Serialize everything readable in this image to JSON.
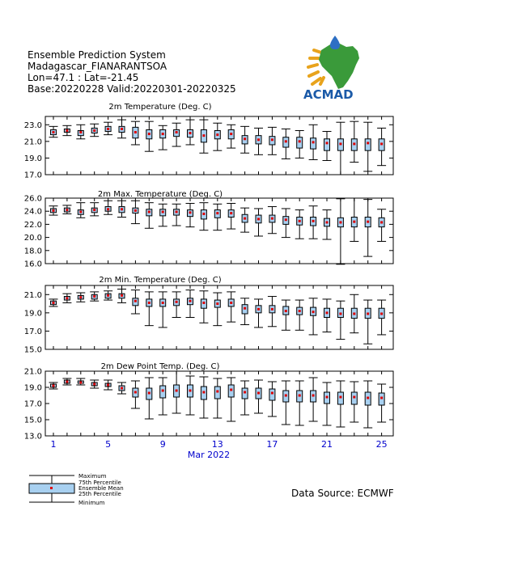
{
  "header": {
    "lines": [
      "Ensemble Prediction System",
      "Madagascar_FIANARANTSOA",
      "Lon=47.1 : Lat=-21.45",
      "Base:20220228 Valid:20220301-20220325"
    ],
    "logo_text": "ACMAD"
  },
  "x_axis": {
    "tick_labels": [
      "1",
      "5",
      "9",
      "13",
      "17",
      "21",
      "25"
    ],
    "month_label": "Mar 2022"
  },
  "legend": {
    "maximum": "Maximum",
    "p75": "75th Percentile",
    "mean": "Ensemble Mean",
    "p25": "25th Percentile",
    "minimum": "Minimum"
  },
  "source": "Data Source: ECMWF",
  "colors": {
    "box_fill": "#a8d0f0",
    "mean_marker": "#dd0000",
    "axis_ticks": "#0000cc"
  },
  "chart_data": [
    {
      "type": "boxplot",
      "title": "2m Temperature (Deg. C)",
      "days": [
        1,
        2,
        3,
        4,
        5,
        6,
        7,
        8,
        9,
        10,
        11,
        12,
        13,
        14,
        15,
        16,
        17,
        18,
        19,
        20,
        21,
        22,
        23,
        24,
        25
      ],
      "ylim": [
        17.0,
        24.0
      ],
      "yticks": [
        "23.0",
        "21.0",
        "19.0",
        "17.0"
      ],
      "min": [
        21.5,
        21.7,
        21.3,
        21.6,
        21.8,
        21.4,
        20.6,
        19.8,
        20.0,
        20.4,
        20.6,
        19.6,
        19.9,
        20.2,
        19.6,
        19.4,
        19.4,
        18.9,
        19.0,
        18.8,
        18.7,
        17.0,
        18.5,
        17.4,
        18.1
      ],
      "p25": [
        21.8,
        22.1,
        21.7,
        22.0,
        22.2,
        22.1,
        21.4,
        21.3,
        21.4,
        21.6,
        21.5,
        20.9,
        21.3,
        21.3,
        20.7,
        20.7,
        20.6,
        20.3,
        20.2,
        20.1,
        19.9,
        19.9,
        19.9,
        19.9,
        19.9
      ],
      "mean": [
        22.1,
        22.3,
        22.1,
        22.3,
        22.5,
        22.5,
        22.1,
        21.9,
        21.9,
        22.1,
        22.0,
        21.7,
        21.8,
        21.9,
        21.3,
        21.2,
        21.2,
        21.0,
        21.0,
        20.9,
        20.8,
        20.7,
        20.7,
        20.8,
        20.7
      ],
      "p75": [
        22.4,
        22.5,
        22.3,
        22.6,
        22.8,
        22.8,
        22.7,
        22.4,
        22.4,
        22.4,
        22.4,
        22.4,
        22.3,
        22.4,
        21.7,
        21.7,
        21.6,
        21.5,
        21.5,
        21.4,
        21.3,
        21.3,
        21.3,
        21.3,
        21.3
      ],
      "max": [
        22.8,
        22.9,
        23.0,
        23.1,
        23.3,
        23.6,
        23.4,
        23.4,
        22.9,
        23.2,
        23.6,
        23.6,
        23.2,
        23.0,
        22.8,
        22.6,
        22.7,
        22.5,
        22.3,
        23.0,
        22.2,
        23.3,
        23.4,
        23.3,
        22.6
      ]
    },
    {
      "type": "boxplot",
      "title": "2m Max. Temperature (Deg. C)",
      "days": [
        1,
        2,
        3,
        4,
        5,
        6,
        7,
        8,
        9,
        10,
        11,
        12,
        13,
        14,
        15,
        16,
        17,
        18,
        19,
        20,
        21,
        22,
        23,
        24,
        25
      ],
      "ylim": [
        16.0,
        26.0
      ],
      "yticks": [
        "26.0",
        "24.0",
        "22.0",
        "20.0",
        "18.0",
        "16.0"
      ],
      "min": [
        23.4,
        23.6,
        23.0,
        23.3,
        23.5,
        23.1,
        22.1,
        21.4,
        21.7,
        21.8,
        21.6,
        21.1,
        21.1,
        21.3,
        20.8,
        20.2,
        20.6,
        20.0,
        19.8,
        19.8,
        19.7,
        15.9,
        19.4,
        17.1,
        19.4
      ],
      "p25": [
        23.8,
        23.9,
        23.5,
        23.8,
        24.0,
        23.8,
        23.7,
        23.3,
        23.3,
        23.4,
        23.2,
        22.8,
        23.0,
        23.1,
        22.3,
        22.2,
        22.3,
        22.0,
        21.9,
        21.8,
        21.7,
        21.6,
        21.6,
        21.6,
        21.6
      ],
      "mean": [
        24.1,
        24.2,
        23.9,
        24.2,
        24.3,
        24.3,
        24.1,
        23.9,
        23.9,
        23.9,
        23.8,
        23.6,
        23.7,
        23.7,
        22.9,
        22.8,
        22.9,
        22.7,
        22.5,
        22.5,
        22.3,
        22.3,
        22.4,
        22.4,
        22.3
      ],
      "p75": [
        24.4,
        24.5,
        24.2,
        24.5,
        24.7,
        24.7,
        24.5,
        24.3,
        24.3,
        24.3,
        24.2,
        24.2,
        24.2,
        24.2,
        23.5,
        23.4,
        23.4,
        23.2,
        23.1,
        23.1,
        22.9,
        23.0,
        23.1,
        23.1,
        23.0
      ],
      "max": [
        24.8,
        24.9,
        25.3,
        25.3,
        25.6,
        25.6,
        25.6,
        25.3,
        25.1,
        25.1,
        25.2,
        25.3,
        25.1,
        25.2,
        24.5,
        24.4,
        24.7,
        24.4,
        24.2,
        24.8,
        24.2,
        25.9,
        26.0,
        25.8,
        24.3
      ]
    },
    {
      "type": "boxplot",
      "title": "2m Min. Temperature (Deg. C)",
      "days": [
        1,
        2,
        3,
        4,
        5,
        6,
        7,
        8,
        9,
        10,
        11,
        12,
        13,
        14,
        15,
        16,
        17,
        18,
        19,
        20,
        21,
        22,
        23,
        24,
        25
      ],
      "ylim": [
        15.0,
        22.0
      ],
      "yticks": [
        "21.0",
        "19.0",
        "17.0",
        "15.0"
      ],
      "min": [
        19.7,
        20.1,
        20.2,
        20.3,
        20.4,
        20.1,
        18.9,
        17.6,
        17.4,
        18.5,
        18.5,
        17.9,
        17.6,
        18.0,
        17.7,
        17.4,
        17.5,
        17.1,
        17.1,
        16.6,
        16.9,
        16.1,
        16.8,
        15.6,
        16.6
      ],
      "p25": [
        19.9,
        20.4,
        20.5,
        20.5,
        20.6,
        20.6,
        19.8,
        19.7,
        19.7,
        19.8,
        19.9,
        19.5,
        19.6,
        19.7,
        18.9,
        19.0,
        19.0,
        18.8,
        18.8,
        18.7,
        18.5,
        18.5,
        18.4,
        18.4,
        18.4
      ],
      "mean": [
        20.1,
        20.6,
        20.7,
        20.8,
        20.9,
        20.9,
        20.3,
        20.1,
        20.1,
        20.2,
        20.3,
        20.1,
        20.0,
        20.1,
        19.5,
        19.4,
        19.4,
        19.2,
        19.2,
        19.1,
        19.0,
        18.9,
        18.9,
        18.9,
        18.9
      ],
      "p75": [
        20.3,
        20.8,
        20.9,
        21.0,
        21.1,
        21.1,
        20.6,
        20.5,
        20.5,
        20.5,
        20.6,
        20.5,
        20.4,
        20.5,
        19.9,
        19.8,
        19.8,
        19.7,
        19.6,
        19.6,
        19.5,
        19.5,
        19.5,
        19.5,
        19.5
      ],
      "max": [
        20.5,
        21.1,
        21.2,
        21.3,
        21.4,
        21.6,
        21.5,
        21.3,
        21.3,
        21.3,
        21.5,
        21.4,
        21.2,
        21.3,
        20.6,
        20.5,
        20.8,
        20.4,
        20.4,
        20.6,
        20.5,
        20.3,
        21.0,
        20.4,
        20.4
      ]
    },
    {
      "type": "boxplot",
      "title": "2m Dew Point Temp. (Deg. C)",
      "days": [
        1,
        2,
        3,
        4,
        5,
        6,
        7,
        8,
        9,
        10,
        11,
        12,
        13,
        14,
        15,
        16,
        17,
        18,
        19,
        20,
        21,
        22,
        23,
        24,
        25
      ],
      "ylim": [
        13.0,
        21.0
      ],
      "yticks": [
        "21.0",
        "19.0",
        "17.0",
        "15.0",
        "13.0"
      ],
      "min": [
        18.8,
        19.3,
        19.3,
        18.9,
        18.7,
        18.2,
        16.4,
        15.1,
        15.6,
        15.8,
        15.6,
        15.2,
        15.2,
        14.8,
        15.6,
        15.8,
        15.4,
        14.4,
        14.3,
        14.8,
        14.3,
        14.1,
        14.7,
        14.0,
        14.7
      ],
      "p25": [
        19.0,
        19.5,
        19.5,
        19.2,
        19.1,
        18.6,
        17.8,
        17.5,
        17.7,
        17.8,
        17.8,
        17.5,
        17.6,
        17.8,
        17.6,
        17.6,
        17.4,
        17.2,
        17.2,
        17.2,
        17.0,
        16.9,
        16.9,
        16.8,
        16.8
      ],
      "mean": [
        19.2,
        19.7,
        19.6,
        19.4,
        19.3,
        18.9,
        18.4,
        18.3,
        18.6,
        18.6,
        18.6,
        18.4,
        18.5,
        18.7,
        18.4,
        18.3,
        18.3,
        18.0,
        18.0,
        18.0,
        17.8,
        17.8,
        17.8,
        17.7,
        17.7
      ],
      "p75": [
        19.4,
        19.9,
        19.8,
        19.6,
        19.5,
        19.2,
        18.9,
        18.9,
        19.2,
        19.3,
        19.3,
        19.1,
        19.1,
        19.3,
        18.9,
        18.9,
        18.8,
        18.6,
        18.6,
        18.6,
        18.4,
        18.4,
        18.4,
        18.4,
        18.3
      ],
      "max": [
        19.6,
        20.1,
        20.1,
        19.9,
        19.9,
        19.6,
        19.8,
        20.2,
        20.2,
        21.0,
        20.4,
        20.3,
        20.1,
        20.2,
        19.8,
        19.9,
        19.7,
        19.8,
        19.8,
        20.2,
        19.6,
        19.8,
        19.7,
        19.8,
        19.4
      ]
    }
  ]
}
